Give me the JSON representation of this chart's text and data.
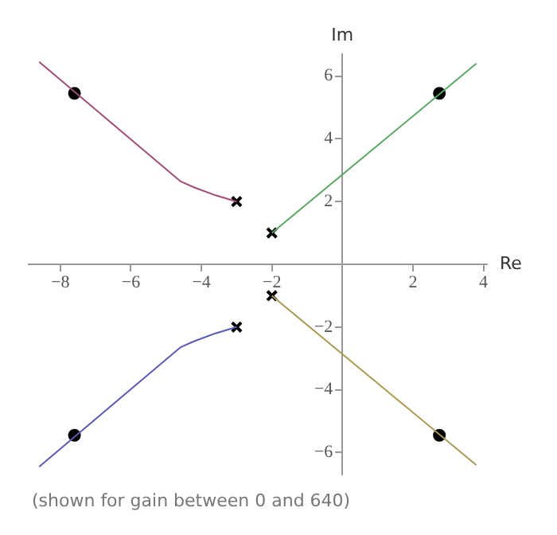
{
  "chart_data": {
    "type": "line",
    "xlabel": "Re",
    "ylabel": "Im",
    "xlim": [
      -8.9,
      4.1
    ],
    "ylim": [
      -6.7,
      6.7
    ],
    "xticks": [
      -8,
      -6,
      -4,
      -2,
      2,
      4
    ],
    "yticks": [
      -6,
      -4,
      -2,
      2,
      4,
      6
    ],
    "grid": false,
    "legend": false,
    "marker": "none",
    "annotations": [
      "(shown for gain between 0 and 640)"
    ],
    "series": [
      {
        "color": "#a04d78",
        "x": [
          -3,
          -3.6,
          -4.2,
          -4.6,
          -8.6
        ],
        "values": [
          2,
          2.2,
          2.45,
          2.65,
          6.45
        ]
      },
      {
        "color": "#5a5ab4",
        "x": [
          -3,
          -3.6,
          -4.2,
          -4.6,
          -8.6
        ],
        "values": [
          -2,
          -2.2,
          -2.45,
          -2.65,
          -6.45
        ]
      },
      {
        "color": "#5aa864",
        "x": [
          -2,
          3.8
        ],
        "values": [
          1,
          6.4
        ]
      },
      {
        "color": "#a89a50",
        "x": [
          -2,
          3.8
        ],
        "values": [
          -1,
          -6.4
        ]
      },
      {
        "type": "scatter",
        "marker": "cross",
        "color": "#000000",
        "x": [
          -3,
          -3,
          -2,
          -2
        ],
        "values": [
          2,
          -2,
          1,
          -1
        ]
      },
      {
        "type": "scatter",
        "marker": "circle",
        "color": "#000000",
        "x": [
          -7.6,
          -7.6,
          2.75,
          2.75
        ],
        "values": [
          5.45,
          -5.45,
          5.45,
          -5.45
        ]
      }
    ]
  }
}
